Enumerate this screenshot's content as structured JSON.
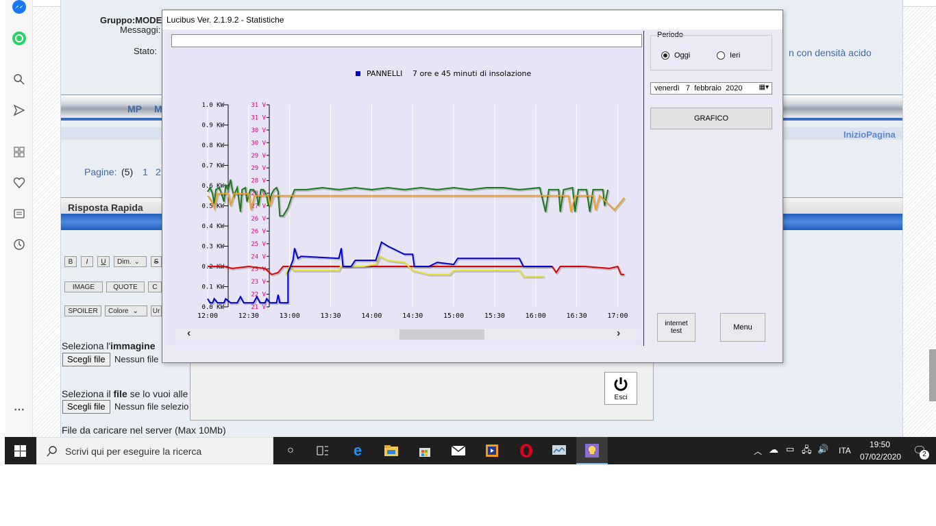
{
  "browser": {
    "sidebar_icons": [
      "messenger-icon",
      "whatsapp-icon",
      "search-icon",
      "send-icon",
      "apps-icon",
      "heart-icon",
      "collections-icon",
      "history-icon",
      "more-icon"
    ]
  },
  "forum": {
    "gruppo_label": "Gruppo:MODE",
    "messaggi_label": "Messaggi:",
    "stato_label": "Stato:",
    "right_text": "n con densità acido",
    "nav_mp": "MP",
    "nav_m": "M",
    "inizio_pagina": "InizioPagina",
    "pagine_label": "Pagine:",
    "pagine_current": "(5)",
    "pagine_1": "1",
    "pagine_2": "2",
    "risposta_rapida": "Risposta Rapida",
    "toolbar_b": "B",
    "toolbar_i": "I",
    "toolbar_u": "U",
    "toolbar_dim": "Dim.",
    "toolbar_s": "S",
    "toolbar_image": "IMAGE",
    "toolbar_quote": "QUOTE",
    "toolbar_c": "C",
    "toolbar_spoiler": "SPOILER",
    "toolbar_colore": "Colore",
    "toolbar_un": "Ur",
    "seleziona_immagine_pre": "Seleziona l'",
    "seleziona_immagine_bold": "immagine",
    "scegli_file_1": "Scegli file",
    "nessun_file_1": "Nessun file",
    "seleziona_file_pre": "Seleziona il ",
    "seleziona_file_bold": "file",
    "seleziona_file_post": " se lo vuoi alle",
    "scegli_file_2": "Scegli file",
    "nessun_file_2": "Nessun file selezio",
    "file_caricare": "File da caricare nel server (Max 10Mb)"
  },
  "back_dialog": {
    "exit_label": "Esci"
  },
  "lucibus": {
    "title": "Lucibus Ver. 2.1.9.2 - Statistiche",
    "periodo_label": "Periodo",
    "radio_oggi": "Oggi",
    "radio_ieri": "Ieri",
    "selected_period": "Oggi",
    "date_weekday": "venerdì",
    "date_day": "7",
    "date_month": "febbraio",
    "date_year": "2020",
    "grafico_button": "GRAFICO",
    "internet_test_line1": "internet",
    "internet_test_line2": "test",
    "menu_button": "Menu",
    "legend_name": "PANNELLI",
    "legend_text": "7 ore e 45 minuti di insolazione",
    "legend_color": "#0000cc"
  },
  "chart_data": {
    "type": "line",
    "title": "",
    "legend": [
      {
        "name": "PANNELLI",
        "text": "7 ore e 45 minuti di insolazione",
        "color": "#0000cc"
      }
    ],
    "x_ticks": [
      "12:00",
      "12:30",
      "13:00",
      "13:30",
      "14:00",
      "14:30",
      "15:00",
      "15:30",
      "16:00",
      "16:30",
      "17:00"
    ],
    "x_range_hours": [
      12.0,
      17.08
    ],
    "kw_ticks": [
      "0.0 KW",
      "0.1 KW",
      "0.2 KW",
      "0.3 KW",
      "0.4 KW",
      "0.5 KW",
      "0.6 KW",
      "0.7 KW",
      "0.8 KW",
      "0.9 KW",
      "1.0 KW"
    ],
    "kw_range": [
      0.0,
      1.0
    ],
    "v_ticks": [
      "21 V",
      "22 V",
      "23 V",
      "23 V",
      "24 V",
      "25 V",
      "26 V",
      "26 V",
      "27 V",
      "28 V",
      "28 V",
      "29 V",
      "29 V",
      "30 V",
      "30 V",
      "31 V",
      "31 V"
    ],
    "v_range": [
      21,
      31
    ],
    "grid": true,
    "series": [
      {
        "color": "#1a7a1a",
        "axis": "kw",
        "points": [
          [
            12.0,
            0.57
          ],
          [
            12.03,
            0.59
          ],
          [
            12.06,
            0.56
          ],
          [
            12.08,
            0.51
          ],
          [
            12.1,
            0.58
          ],
          [
            12.14,
            0.59
          ],
          [
            12.17,
            0.56
          ],
          [
            12.2,
            0.52
          ],
          [
            12.22,
            0.6
          ],
          [
            12.25,
            0.58
          ],
          [
            12.28,
            0.63
          ],
          [
            12.3,
            0.58
          ],
          [
            12.32,
            0.55
          ],
          [
            12.36,
            0.59
          ],
          [
            12.4,
            0.47
          ],
          [
            12.42,
            0.58
          ],
          [
            12.46,
            0.59
          ],
          [
            12.48,
            0.52
          ],
          [
            12.52,
            0.58
          ],
          [
            12.56,
            0.58
          ],
          [
            12.6,
            0.55
          ],
          [
            12.62,
            0.5
          ],
          [
            12.65,
            0.58
          ],
          [
            12.68,
            0.58
          ],
          [
            12.72,
            0.55
          ],
          [
            12.74,
            0.5
          ],
          [
            12.78,
            0.56
          ],
          [
            12.81,
            0.58
          ],
          [
            12.84,
            0.59
          ],
          [
            12.86,
            0.57
          ],
          [
            12.88,
            0.45
          ],
          [
            12.92,
            0.45
          ],
          [
            12.98,
            0.49
          ],
          [
            13.02,
            0.54
          ],
          [
            13.06,
            0.58
          ],
          [
            13.2,
            0.58
          ],
          [
            13.4,
            0.59
          ],
          [
            13.6,
            0.58
          ],
          [
            13.8,
            0.59
          ],
          [
            14.0,
            0.58
          ],
          [
            14.2,
            0.59
          ],
          [
            14.4,
            0.58
          ],
          [
            14.6,
            0.59
          ],
          [
            14.8,
            0.58
          ],
          [
            15.0,
            0.59
          ],
          [
            15.2,
            0.58
          ],
          [
            15.4,
            0.59
          ],
          [
            15.6,
            0.59
          ],
          [
            15.8,
            0.58
          ],
          [
            16.05,
            0.59
          ],
          [
            16.12,
            0.47
          ],
          [
            16.16,
            0.58
          ],
          [
            16.28,
            0.58
          ],
          [
            16.3,
            0.47
          ],
          [
            16.34,
            0.58
          ],
          [
            16.45,
            0.59
          ],
          [
            16.48,
            0.47
          ],
          [
            16.52,
            0.58
          ],
          [
            16.62,
            0.58
          ],
          [
            16.66,
            0.47
          ],
          [
            16.7,
            0.58
          ],
          [
            16.82,
            0.58
          ],
          [
            16.84,
            0.5
          ],
          [
            16.88,
            0.58
          ]
        ]
      },
      {
        "color": "#f0a020",
        "axis": "kw",
        "points": [
          [
            12.0,
            0.55
          ],
          [
            12.05,
            0.52
          ],
          [
            12.08,
            0.49
          ],
          [
            12.12,
            0.56
          ],
          [
            12.25,
            0.56
          ],
          [
            12.28,
            0.5
          ],
          [
            12.32,
            0.56
          ],
          [
            12.5,
            0.56
          ],
          [
            12.53,
            0.48
          ],
          [
            12.57,
            0.55
          ],
          [
            12.74,
            0.55
          ],
          [
            12.76,
            0.5
          ],
          [
            12.8,
            0.55
          ],
          [
            16.4,
            0.55
          ],
          [
            16.43,
            0.47
          ],
          [
            16.48,
            0.55
          ],
          [
            16.7,
            0.55
          ],
          [
            16.73,
            0.48
          ],
          [
            16.78,
            0.55
          ],
          [
            16.96,
            0.48
          ],
          [
            17.08,
            0.54
          ]
        ]
      },
      {
        "color": "#e00000",
        "axis": "kw",
        "points": [
          [
            12.0,
            0.2
          ],
          [
            12.2,
            0.2
          ],
          [
            12.3,
            0.19
          ],
          [
            12.5,
            0.2
          ],
          [
            12.7,
            0.19
          ],
          [
            12.78,
            0.16
          ],
          [
            12.86,
            0.17
          ],
          [
            12.92,
            0.2
          ],
          [
            16.2,
            0.2
          ],
          [
            16.25,
            0.17
          ],
          [
            16.3,
            0.2
          ],
          [
            16.6,
            0.2
          ],
          [
            16.9,
            0.19
          ],
          [
            17.0,
            0.2
          ],
          [
            17.04,
            0.16
          ],
          [
            17.08,
            0.16
          ]
        ]
      },
      {
        "color": "#e8e030",
        "axis": "kw",
        "points": [
          [
            12.95,
            0.16
          ],
          [
            13.0,
            0.2
          ],
          [
            13.05,
            0.18
          ],
          [
            13.3,
            0.18
          ],
          [
            13.6,
            0.18
          ],
          [
            13.62,
            0.2
          ],
          [
            13.9,
            0.2
          ],
          [
            14.05,
            0.21
          ],
          [
            14.1,
            0.25
          ],
          [
            14.2,
            0.23
          ],
          [
            14.4,
            0.22
          ],
          [
            14.5,
            0.18
          ],
          [
            14.7,
            0.16
          ],
          [
            14.95,
            0.16
          ],
          [
            15.0,
            0.18
          ],
          [
            15.8,
            0.18
          ],
          [
            15.85,
            0.15
          ],
          [
            16.1,
            0.15
          ]
        ]
      },
      {
        "color": "#0000cc",
        "axis": "kw",
        "points": [
          [
            12.0,
            0.04
          ],
          [
            12.03,
            0.02
          ],
          [
            12.06,
            0.02
          ],
          [
            12.08,
            0.04
          ],
          [
            12.12,
            0.02
          ],
          [
            12.2,
            0.02
          ],
          [
            12.22,
            0.04
          ],
          [
            12.28,
            0.02
          ],
          [
            12.36,
            0.02
          ],
          [
            12.4,
            0.05
          ],
          [
            12.44,
            0.02
          ],
          [
            12.56,
            0.02
          ],
          [
            12.6,
            0.05
          ],
          [
            12.64,
            0.02
          ],
          [
            12.7,
            0.02
          ],
          [
            12.72,
            0.04
          ],
          [
            12.76,
            0.02
          ],
          [
            12.84,
            0.02
          ],
          [
            12.86,
            0.06
          ],
          [
            12.88,
            0.02
          ],
          [
            12.98,
            0.02
          ],
          [
            12.98,
            0.17
          ],
          [
            13.04,
            0.23
          ],
          [
            13.06,
            0.29
          ],
          [
            13.1,
            0.24
          ],
          [
            13.14,
            0.25
          ],
          [
            13.6,
            0.24
          ],
          [
            13.63,
            0.29
          ],
          [
            13.65,
            0.2
          ],
          [
            13.75,
            0.2
          ],
          [
            13.8,
            0.23
          ],
          [
            14.05,
            0.23
          ],
          [
            14.12,
            0.32
          ],
          [
            14.2,
            0.3
          ],
          [
            14.4,
            0.26
          ],
          [
            14.5,
            0.26
          ],
          [
            14.52,
            0.2
          ],
          [
            14.7,
            0.2
          ],
          [
            14.8,
            0.22
          ],
          [
            15.0,
            0.21
          ],
          [
            15.05,
            0.24
          ],
          [
            15.8,
            0.24
          ],
          [
            15.85,
            0.2
          ],
          [
            16.1,
            0.2
          ],
          [
            16.2,
            0.2
          ]
        ]
      }
    ]
  },
  "taskbar": {
    "search_placeholder": "Scrivi qui per eseguire la ricerca",
    "language": "ITA",
    "time": "19:50",
    "date": "07/02/2020",
    "notifications_count": "2"
  }
}
